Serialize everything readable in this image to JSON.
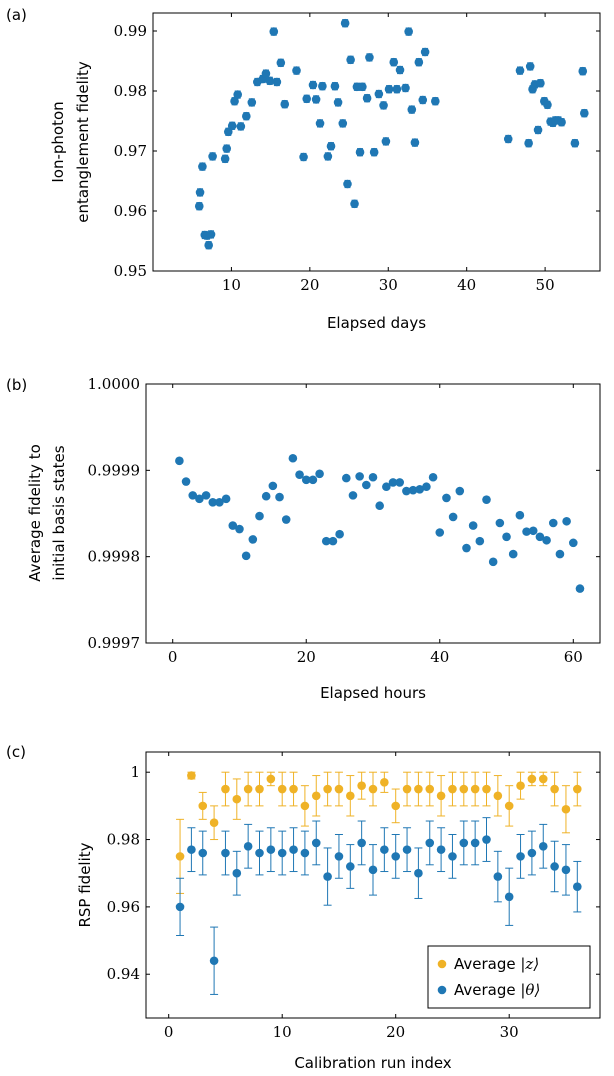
{
  "colors": {
    "blue": "#1f77b4",
    "orange": "#efb226"
  },
  "chart_data": [
    {
      "type": "scatter",
      "panel_label": "(a)",
      "xlabel": "Elapsed days",
      "ylabel_lines": [
        "Ion-photon",
        "entanglement fidelity"
      ],
      "xlim": [
        0,
        57
      ],
      "ylim": [
        0.95,
        0.993
      ],
      "xticks": [
        10,
        20,
        30,
        40,
        50
      ],
      "xtick_labels": [
        "10",
        "20",
        "30",
        "40",
        "50"
      ],
      "yticks": [
        0.95,
        0.96,
        0.97,
        0.98,
        0.99
      ],
      "ytick_labels": [
        "0.95",
        "0.96",
        "0.97",
        "0.98",
        "0.99"
      ],
      "grid": false,
      "error_bars": true,
      "series": [
        {
          "color": "#1f77b4",
          "yerr": 0.0006,
          "x": [
            5.9,
            6.0,
            6.3,
            6.6,
            6.9,
            7.1,
            7.4,
            7.6,
            9.2,
            9.4,
            9.6,
            10.1,
            10.4,
            10.8,
            11.2,
            11.9,
            12.6,
            13.3,
            14.0,
            14.4,
            14.9,
            15.4,
            15.8,
            16.3,
            16.8,
            18.3,
            19.2,
            19.6,
            20.4,
            20.8,
            21.3,
            21.6,
            22.3,
            22.7,
            23.2,
            23.6,
            24.2,
            24.5,
            24.8,
            25.2,
            25.7,
            26.0,
            26.4,
            26.7,
            27.3,
            27.6,
            28.2,
            28.8,
            29.4,
            29.7,
            30.1,
            30.7,
            31.1,
            31.5,
            32.2,
            32.6,
            33.0,
            33.4,
            33.9,
            34.4,
            34.7,
            36.0,
            45.3,
            46.8,
            47.9,
            48.1,
            48.4,
            48.7,
            49.1,
            49.4,
            49.9,
            50.3,
            50.7,
            51.0,
            51.3,
            51.7,
            52.1,
            53.8,
            54.8,
            55.0
          ],
          "y": [
            0.9608,
            0.9631,
            0.9674,
            0.956,
            0.9559,
            0.9543,
            0.9561,
            0.9691,
            0.9687,
            0.9704,
            0.9732,
            0.9742,
            0.9783,
            0.9794,
            0.9741,
            0.9758,
            0.9781,
            0.9815,
            0.982,
            0.9829,
            0.9817,
            0.9899,
            0.9815,
            0.9847,
            0.9778,
            0.9834,
            0.969,
            0.9787,
            0.981,
            0.9786,
            0.9746,
            0.9808,
            0.9691,
            0.9708,
            0.9808,
            0.9781,
            0.9746,
            0.9913,
            0.9645,
            0.9852,
            0.9612,
            0.9807,
            0.9698,
            0.9807,
            0.9788,
            0.9856,
            0.9698,
            0.9795,
            0.9776,
            0.9716,
            0.9803,
            0.9848,
            0.9803,
            0.9835,
            0.9805,
            0.9899,
            0.9769,
            0.9714,
            0.9848,
            0.9785,
            0.9865,
            0.9783,
            0.972,
            0.9834,
            0.9713,
            0.9841,
            0.9803,
            0.9811,
            0.9735,
            0.9813,
            0.9783,
            0.9777,
            0.9749,
            0.9747,
            0.9751,
            0.9751,
            0.9748,
            0.9713,
            0.9833,
            0.9763
          ]
        }
      ]
    },
    {
      "type": "scatter",
      "panel_label": "(b)",
      "xlabel": "Elapsed hours",
      "ylabel_lines": [
        "Average fidelity to",
        "initial basis states"
      ],
      "xlim": [
        -4,
        64
      ],
      "ylim": [
        0.9997,
        1.0
      ],
      "xticks": [
        0,
        20,
        40,
        60
      ],
      "xtick_labels": [
        "0",
        "20",
        "40",
        "60"
      ],
      "yticks": [
        0.9997,
        0.9998,
        0.9999,
        1.0
      ],
      "ytick_labels": [
        "0.9997",
        "0.9998",
        "0.9999",
        "1.0000"
      ],
      "grid": false,
      "error_bars": false,
      "series": [
        {
          "color": "#1f77b4",
          "x": [
            1,
            2,
            3,
            4,
            5,
            6,
            7,
            8,
            9,
            10,
            11,
            12,
            13,
            14,
            15,
            16,
            17,
            18,
            19,
            20,
            21,
            22,
            23,
            24,
            25,
            26,
            27,
            28,
            29,
            30,
            31,
            32,
            33,
            34,
            35,
            36,
            37,
            38,
            39,
            40,
            41,
            42,
            43,
            44,
            45,
            46,
            47,
            48,
            49,
            50,
            51,
            52,
            53,
            54,
            55,
            56,
            57,
            58,
            59,
            60,
            61
          ],
          "y": [
            0.999911,
            0.999887,
            0.999871,
            0.999867,
            0.999871,
            0.999863,
            0.999863,
            0.999867,
            0.999836,
            0.999832,
            0.999801,
            0.99982,
            0.999847,
            0.99987,
            0.999882,
            0.999869,
            0.999843,
            0.999914,
            0.999895,
            0.999889,
            0.999889,
            0.999896,
            0.999818,
            0.999818,
            0.999826,
            0.999891,
            0.999871,
            0.999893,
            0.999883,
            0.999892,
            0.999859,
            0.999881,
            0.999886,
            0.999886,
            0.999876,
            0.999877,
            0.999878,
            0.999881,
            0.999892,
            0.999828,
            0.999868,
            0.999846,
            0.999876,
            0.99981,
            0.999836,
            0.999818,
            0.999866,
            0.999794,
            0.999839,
            0.999823,
            0.999803,
            0.999848,
            0.999829,
            0.99983,
            0.999823,
            0.999819,
            0.999839,
            0.999803,
            0.999841,
            0.999816,
            0.999763
          ]
        }
      ]
    },
    {
      "type": "scatter",
      "panel_label": "(c)",
      "xlabel": "Calibration run index",
      "ylabel_lines": [
        "RSP fidelity"
      ],
      "xlim": [
        -2,
        38
      ],
      "ylim": [
        0.927,
        1.006
      ],
      "xticks": [
        0,
        10,
        20,
        30
      ],
      "xtick_labels": [
        "0",
        "10",
        "20",
        "30"
      ],
      "yticks": [
        0.94,
        0.96,
        0.98,
        1.0
      ],
      "ytick_labels": [
        "0.94",
        "0.96",
        "0.98",
        "1"
      ],
      "grid": false,
      "error_bars": true,
      "legend": "bottom-right",
      "series": [
        {
          "legend_text": "Average ",
          "legend_math": "|z⟩",
          "color": "#efb226",
          "x": [
            1,
            2,
            3,
            4,
            5,
            6,
            7,
            8,
            9,
            10,
            11,
            12,
            13,
            14,
            15,
            16,
            17,
            18,
            19,
            20,
            21,
            22,
            23,
            24,
            25,
            26,
            27,
            28,
            29,
            30,
            31,
            32,
            33,
            34,
            35,
            36
          ],
          "y": [
            0.975,
            0.999,
            0.99,
            0.985,
            0.995,
            0.992,
            0.995,
            0.995,
            0.998,
            0.995,
            0.995,
            0.99,
            0.993,
            0.995,
            0.995,
            0.993,
            0.996,
            0.995,
            0.997,
            0.99,
            0.995,
            0.995,
            0.995,
            0.993,
            0.995,
            0.995,
            0.995,
            0.995,
            0.993,
            0.99,
            0.996,
            0.998,
            0.998,
            0.995,
            0.989,
            0.995
          ],
          "yerr": [
            0.011,
            0.001,
            0.004,
            0.005,
            0.005,
            0.006,
            0.005,
            0.005,
            0.002,
            0.005,
            0.005,
            0.006,
            0.006,
            0.005,
            0.005,
            0.006,
            0.004,
            0.005,
            0.003,
            0.005,
            0.005,
            0.005,
            0.005,
            0.006,
            0.005,
            0.005,
            0.005,
            0.005,
            0.006,
            0.006,
            0.004,
            0.002,
            0.002,
            0.005,
            0.007,
            0.005
          ]
        },
        {
          "legend_text": "Average ",
          "legend_math": "|θ⟩",
          "color": "#1f77b4",
          "x": [
            1,
            2,
            3,
            4,
            5,
            6,
            7,
            8,
            9,
            10,
            11,
            12,
            13,
            14,
            15,
            16,
            17,
            18,
            19,
            20,
            21,
            22,
            23,
            24,
            25,
            26,
            27,
            28,
            29,
            30,
            31,
            32,
            33,
            34,
            35,
            36
          ],
          "y": [
            0.96,
            0.977,
            0.976,
            0.944,
            0.976,
            0.97,
            0.978,
            0.976,
            0.977,
            0.976,
            0.977,
            0.976,
            0.979,
            0.969,
            0.975,
            0.972,
            0.979,
            0.971,
            0.977,
            0.975,
            0.977,
            0.97,
            0.979,
            0.977,
            0.975,
            0.979,
            0.979,
            0.98,
            0.969,
            0.963,
            0.975,
            0.976,
            0.978,
            0.972,
            0.971,
            0.966
          ],
          "yerr": [
            0.0085,
            0.0065,
            0.0065,
            0.01,
            0.0065,
            0.0065,
            0.0065,
            0.0065,
            0.0065,
            0.0065,
            0.0065,
            0.0065,
            0.0065,
            0.0085,
            0.0065,
            0.0065,
            0.0065,
            0.0075,
            0.0065,
            0.0065,
            0.0065,
            0.0075,
            0.0065,
            0.0065,
            0.0065,
            0.0065,
            0.0065,
            0.0065,
            0.0075,
            0.0085,
            0.0065,
            0.0065,
            0.0065,
            0.0075,
            0.0075,
            0.0075
          ]
        }
      ]
    }
  ]
}
